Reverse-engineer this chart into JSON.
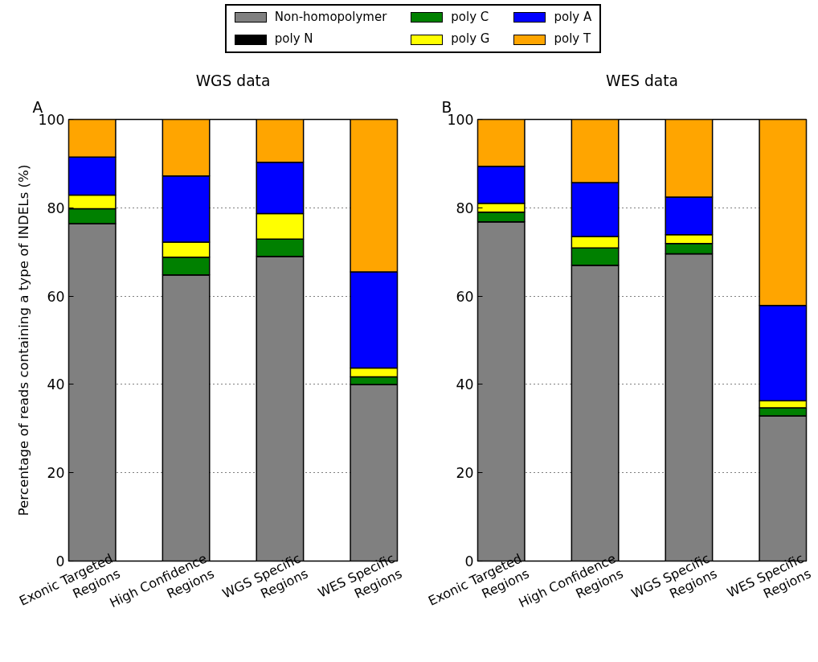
{
  "chart_data": [
    {
      "type": "bar",
      "stacked": true,
      "title": "WGS data",
      "ylabel": "Percentage of reads containing a type of INDELs (%)",
      "annotations": [
        "A"
      ],
      "categories": [
        "Exonic Targeted\nRegions",
        "High Confidence\nRegions",
        "WGS Specific\nRegions",
        "WES Specific\nRegions"
      ],
      "series": [
        {
          "name": "Non-homopolymer",
          "color": "#808080",
          "values": [
            76.4,
            64.8,
            69.0,
            40.0
          ]
        },
        {
          "name": "poly N",
          "color": "#000000",
          "values": [
            0,
            0,
            0,
            0
          ]
        },
        {
          "name": "poly C",
          "color": "#008000",
          "values": [
            3.4,
            4.0,
            3.9,
            1.7
          ]
        },
        {
          "name": "poly G",
          "color": "#ffff00",
          "values": [
            3.1,
            3.4,
            5.8,
            2.0
          ]
        },
        {
          "name": "poly A",
          "color": "#0000ff",
          "values": [
            8.6,
            15.0,
            11.6,
            21.8
          ]
        },
        {
          "name": "poly T",
          "color": "#ffa500",
          "values": [
            8.5,
            12.8,
            9.7,
            34.5
          ]
        }
      ],
      "ylim": [
        0,
        100
      ],
      "yticks": [
        0,
        20,
        40,
        60,
        80,
        100
      ],
      "grid": "y",
      "legend": "top"
    },
    {
      "type": "bar",
      "stacked": true,
      "title": "WES data",
      "annotations": [
        "B"
      ],
      "categories": [
        "Exonic Targeted\nRegions",
        "High Confidence\nRegions",
        "WGS Specific\nRegions",
        "WES Specific\nRegions"
      ],
      "series": [
        {
          "name": "Non-homopolymer",
          "color": "#808080",
          "values": [
            76.8,
            67.0,
            69.6,
            32.9
          ]
        },
        {
          "name": "poly N",
          "color": "#000000",
          "values": [
            0,
            0,
            0,
            0
          ]
        },
        {
          "name": "poly C",
          "color": "#008000",
          "values": [
            2.2,
            3.9,
            2.3,
            1.8
          ]
        },
        {
          "name": "poly G",
          "color": "#ffff00",
          "values": [
            2.0,
            2.6,
            2.0,
            1.6
          ]
        },
        {
          "name": "poly A",
          "color": "#0000ff",
          "values": [
            8.4,
            12.2,
            8.5,
            21.6
          ]
        },
        {
          "name": "poly T",
          "color": "#ffa500",
          "values": [
            10.6,
            14.3,
            17.6,
            42.1
          ]
        }
      ],
      "ylim": [
        0,
        100
      ],
      "yticks": [
        0,
        20,
        40,
        60,
        80,
        100
      ],
      "grid": "y"
    }
  ]
}
